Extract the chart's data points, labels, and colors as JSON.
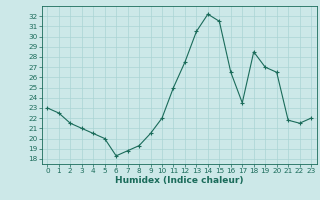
{
  "x": [
    0,
    1,
    2,
    3,
    4,
    5,
    6,
    7,
    8,
    9,
    10,
    11,
    12,
    13,
    14,
    15,
    16,
    17,
    18,
    19,
    20,
    21,
    22,
    23
  ],
  "y": [
    23.0,
    22.5,
    21.5,
    21.0,
    20.5,
    20.0,
    18.3,
    18.8,
    19.3,
    20.5,
    22.0,
    25.0,
    27.5,
    30.5,
    32.2,
    31.5,
    26.5,
    23.5,
    28.5,
    27.0,
    26.5,
    21.8,
    21.5,
    22.0
  ],
  "xlabel": "Humidex (Indice chaleur)",
  "ylim": [
    17.5,
    33.0
  ],
  "xlim": [
    -0.5,
    23.5
  ],
  "yticks": [
    18,
    19,
    20,
    21,
    22,
    23,
    24,
    25,
    26,
    27,
    28,
    29,
    30,
    31,
    32
  ],
  "xticks": [
    0,
    1,
    2,
    3,
    4,
    5,
    6,
    7,
    8,
    9,
    10,
    11,
    12,
    13,
    14,
    15,
    16,
    17,
    18,
    19,
    20,
    21,
    22,
    23
  ],
  "line_color": "#1a6b5a",
  "marker_color": "#1a6b5a",
  "bg_color": "#cce8e8",
  "grid_color": "#aad4d4",
  "font_color": "#1a6b5a",
  "label_fontsize": 6.5,
  "tick_fontsize": 5.2
}
